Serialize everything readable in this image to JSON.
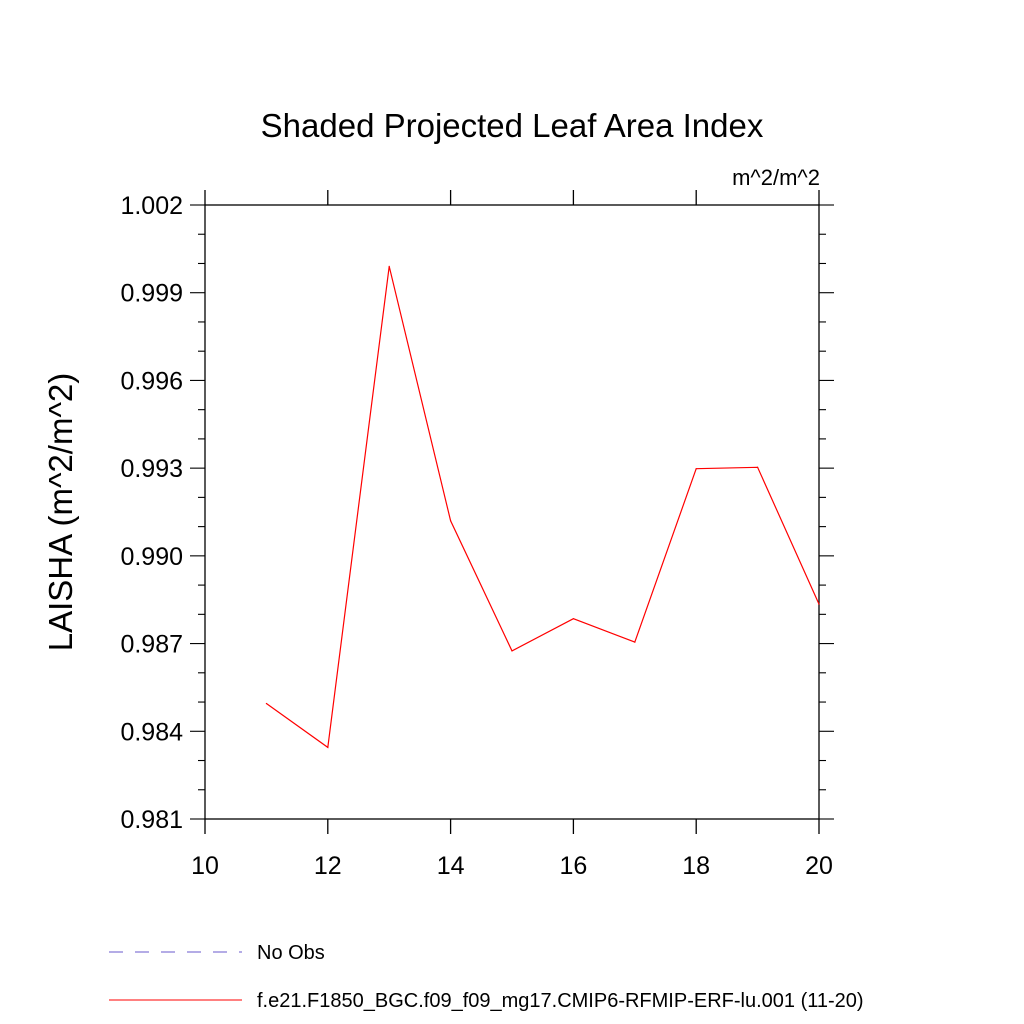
{
  "chart_data": {
    "type": "line",
    "title": "Shaded Projected Leaf Area Index",
    "units": "m^2/m^2",
    "ylabel": "LAISHA  (m^2/m^2)",
    "xlabel": "",
    "xlim": [
      10,
      20
    ],
    "ylim": [
      0.981,
      1.002
    ],
    "xticks": [
      10,
      12,
      14,
      16,
      18,
      20
    ],
    "xtick_labels": [
      "10",
      "12",
      "14",
      "16",
      "18",
      "20"
    ],
    "yticks": [
      0.981,
      0.984,
      0.987,
      0.99,
      0.993,
      0.996,
      0.999,
      1.002
    ],
    "ytick_labels": [
      "0.981",
      "0.984",
      "0.987",
      "0.990",
      "0.993",
      "0.996",
      "0.999",
      "1.002"
    ],
    "series": [
      {
        "name": "f.e21.F1850_BGC.f09_f09_mg17.CMIP6-RFMIP-ERF-lu.001 (11-20)",
        "color": "#ff0000",
        "x": [
          11,
          12,
          13,
          14,
          15,
          16,
          17,
          18,
          19,
          20
        ],
        "values": [
          0.98495,
          0.98345,
          0.9999,
          0.9912,
          0.98675,
          0.98785,
          0.98705,
          0.99298,
          0.99303,
          0.98835
        ]
      }
    ],
    "legend": [
      {
        "label": "No Obs",
        "color": "#6a5acd",
        "style": "dashed"
      },
      {
        "label": "f.e21.F1850_BGC.f09_f09_mg17.CMIP6-RFMIP-ERF-lu.001 (11-20)",
        "color": "#ff0000",
        "style": "solid"
      }
    ]
  }
}
